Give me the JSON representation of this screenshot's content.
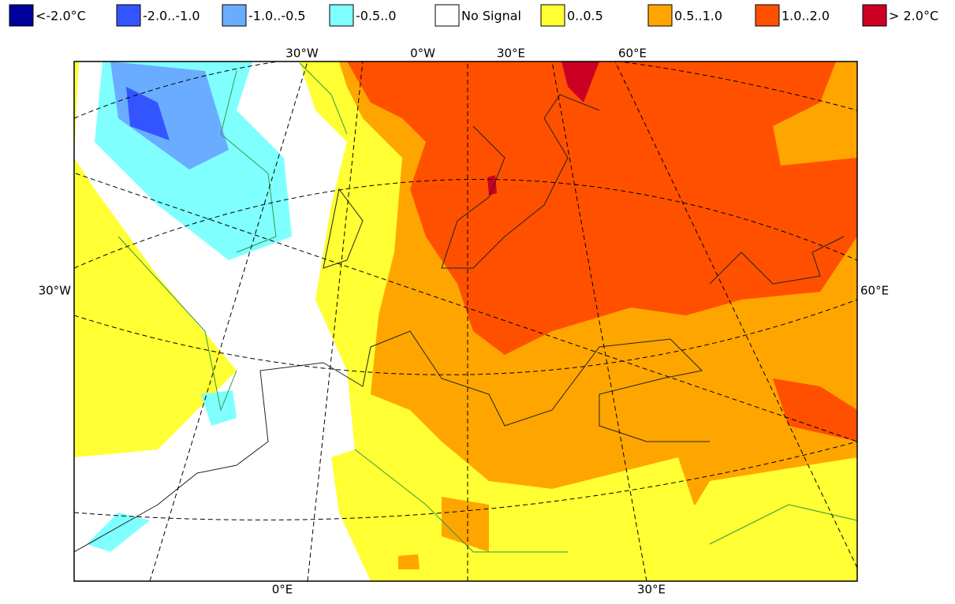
{
  "legend": {
    "items": [
      {
        "label": "<-2.0°C",
        "color": "#00009a"
      },
      {
        "label": "-2.0..-1.0",
        "color": "#3355ff"
      },
      {
        "label": "-1.0..-0.5",
        "color": "#6aacff"
      },
      {
        "label": "-0.5..0",
        "color": "#80ffff"
      },
      {
        "label": "No Signal",
        "color": "#ffffff"
      },
      {
        "label": "0..0.5",
        "color": "#ffff33"
      },
      {
        "label": "0.5..1.0",
        "color": "#ffa500"
      },
      {
        "label": "1.0..2.0",
        "color": "#ff5000"
      },
      {
        "label": "> 2.0°C",
        "color": "#cc0022"
      }
    ]
  },
  "map": {
    "labels": {
      "top": [
        "30°W",
        "0°W",
        "30°E",
        "60°E"
      ],
      "left": [
        "30°W"
      ],
      "right": [
        "60°E"
      ],
      "bottom": [
        "0°E",
        "30°E"
      ]
    }
  }
}
